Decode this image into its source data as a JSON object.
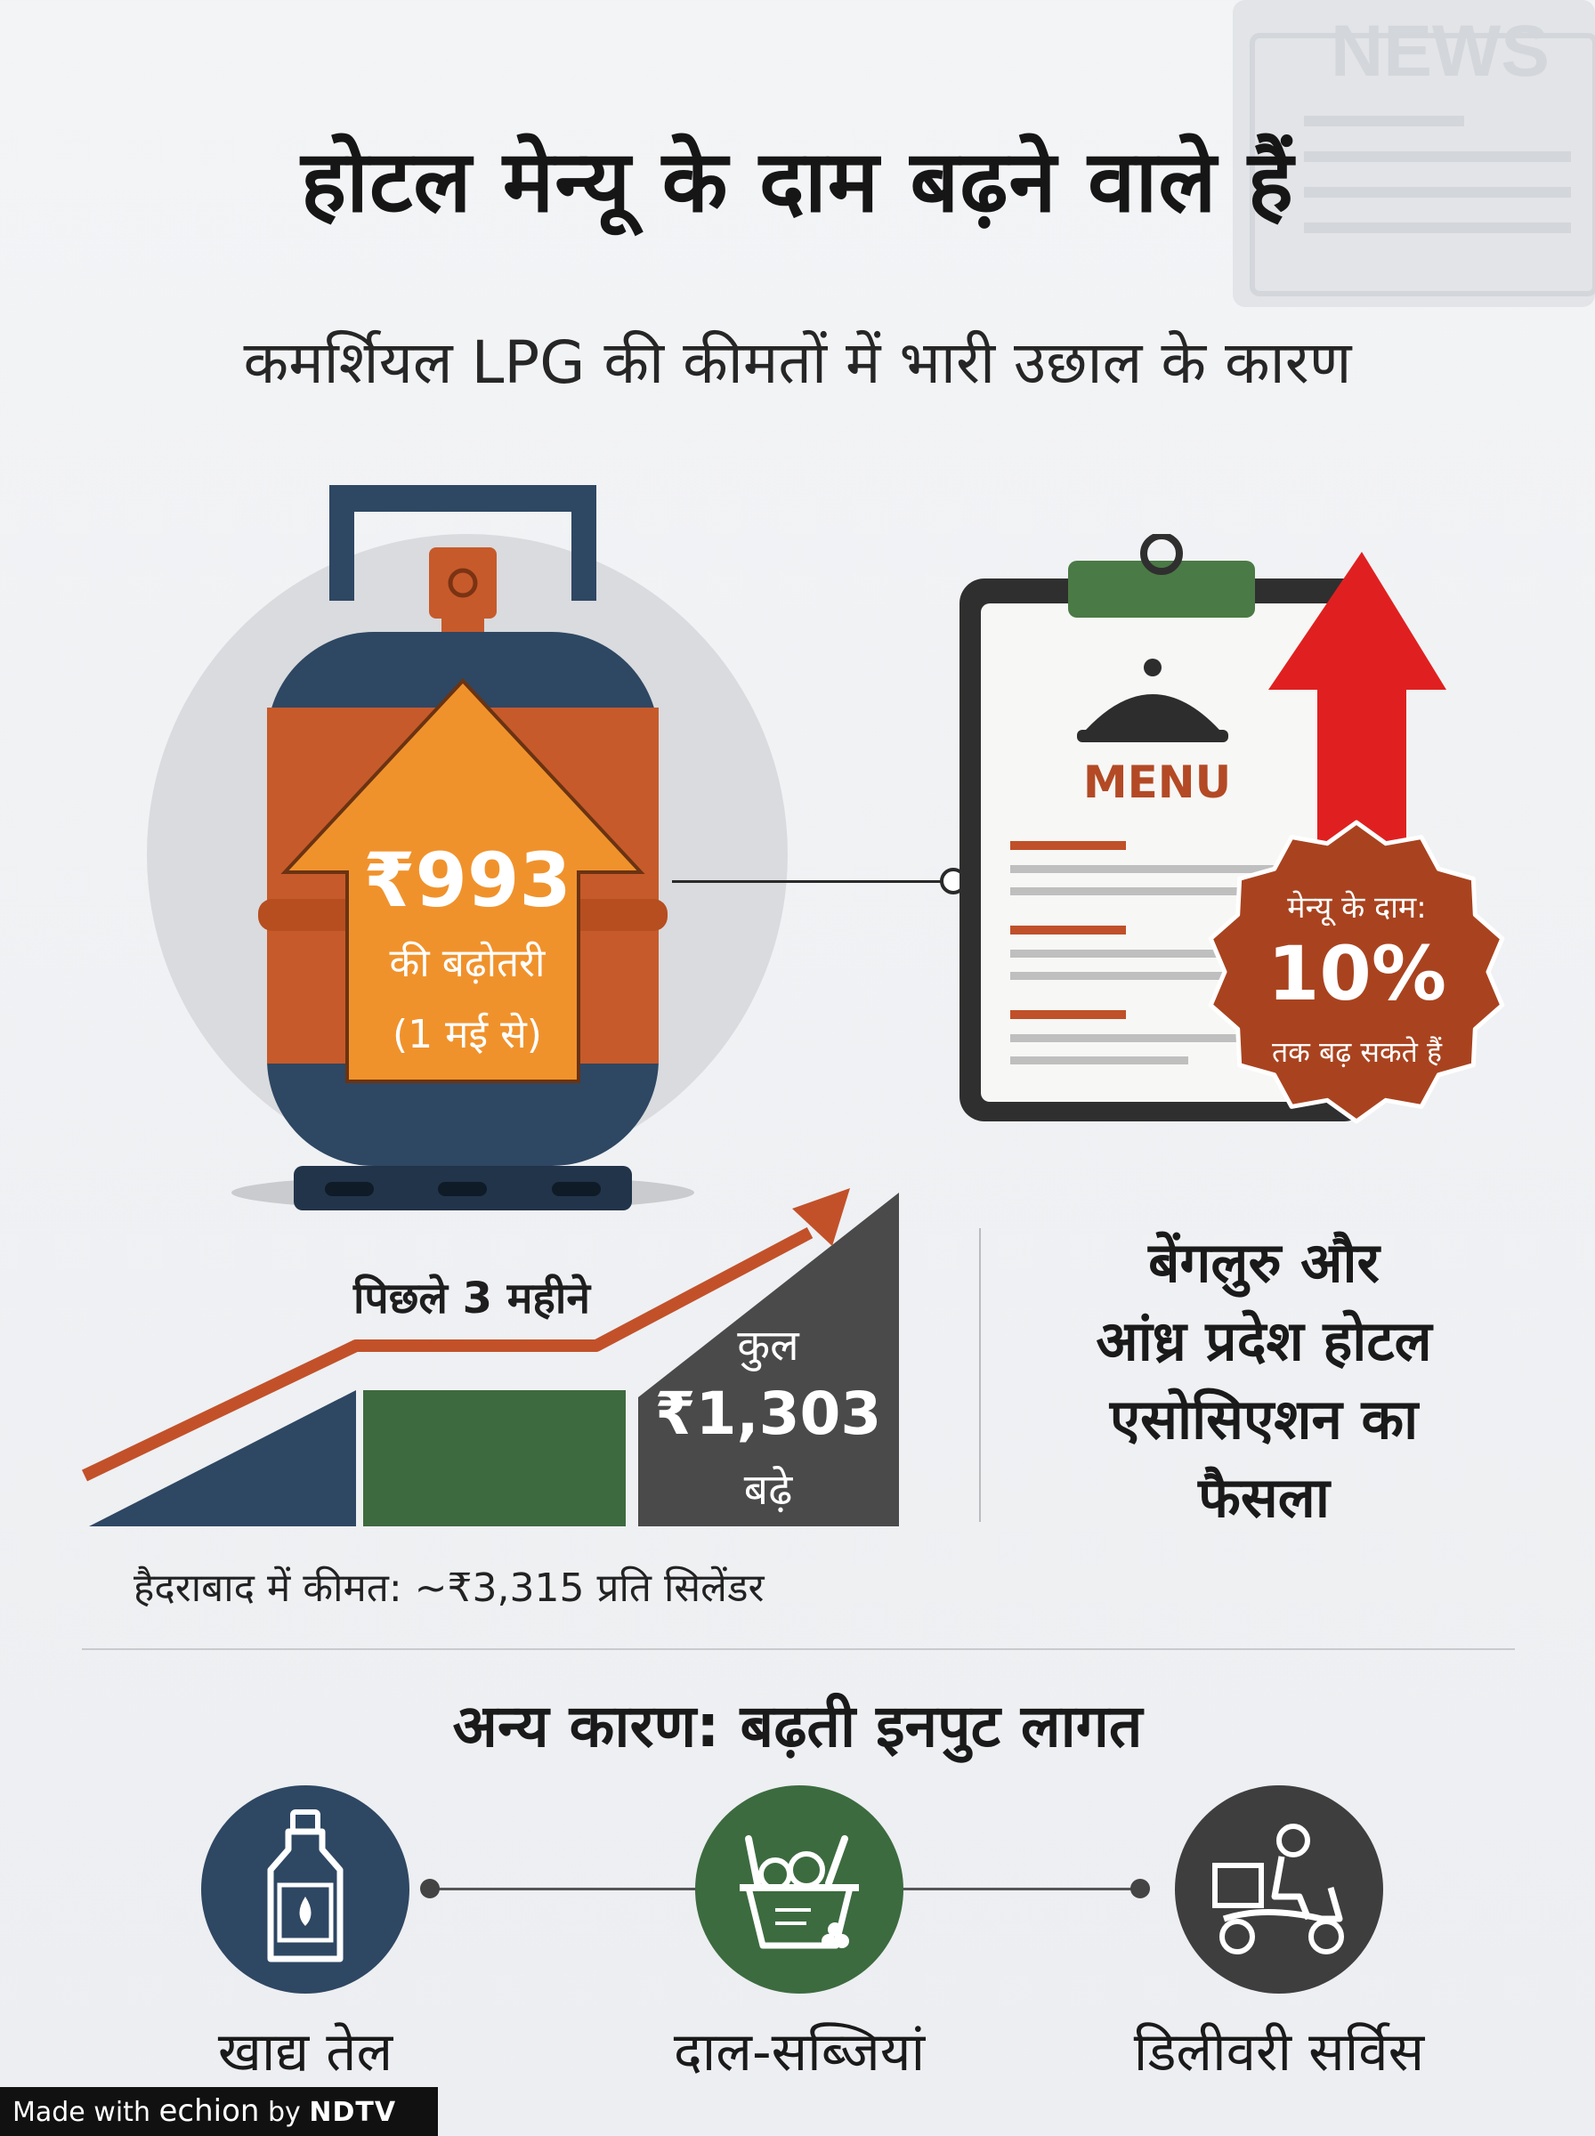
{
  "header": {
    "watermark": "NEWS",
    "title": "होटल मेन्यू के दाम बढ़ने वाले हैं",
    "subtitle": "कमर्शियल LPG की कीमतों में भारी उछाल के कारण"
  },
  "cylinder": {
    "amount": "₹993",
    "label": "की बढ़ोतरी",
    "date": "(1 मई से)"
  },
  "menu": {
    "label": "MENU",
    "badge_line1": "मेन्यू के दाम:",
    "badge_value": "10%",
    "badge_line3": "तक बढ़ सकते हैं"
  },
  "trend": {
    "title": "पिछले 3 महीने",
    "total_label": "कुल",
    "total_amount": "₹1,303",
    "total_suffix": "बढ़े",
    "price_note": "हैदराबाद में कीमत: ~₹3,315 प्रति सिलेंडर"
  },
  "association": {
    "lines": [
      "बेंगलुरु और",
      "आंध्र प्रदेश होटल",
      "एसोसिएशन का",
      "फैसला"
    ]
  },
  "other_causes": {
    "title": "अन्य कारण: बढ़ती इनपुट लागत",
    "items": [
      {
        "label": "खाद्य तेल",
        "icon": "oil-bottle-icon",
        "color": "#2e4763"
      },
      {
        "label": "दाल-सब्जियां",
        "icon": "vegetable-basket-icon",
        "color": "#3c6b3f"
      },
      {
        "label": "डिलीवरी सर्विस",
        "icon": "delivery-scooter-icon",
        "color": "#3e3e3e"
      }
    ]
  },
  "footer": {
    "made_with": "Made with",
    "brand": "echion",
    "by": "by",
    "partner": "NDTV"
  },
  "colors": {
    "cylinder_blue": "#2e4763",
    "cylinder_orange": "#c75a2a",
    "arrow_orange": "#f0922c",
    "red_arrow": "#e02020",
    "badge_brown": "#a9431f",
    "bar_green": "#3e6a3f",
    "bar_dark": "#4a4a4a"
  }
}
